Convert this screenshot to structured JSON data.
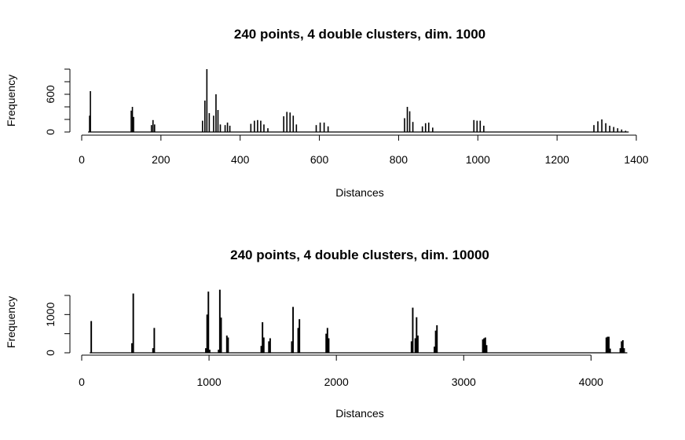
{
  "chart_data": [
    {
      "type": "bar",
      "title": "240 points, 4 double clusters, dim. 1000",
      "xlabel": "Distances",
      "ylabel": "Frequency",
      "xlim": [
        0,
        1400
      ],
      "ylim": [
        0,
        1000
      ],
      "xticks": [
        0,
        200,
        400,
        600,
        800,
        1000,
        1200,
        1400
      ],
      "yticks": [
        0,
        600
      ],
      "yticks_unlabeled": [
        200,
        400,
        800,
        1000
      ],
      "grid": false,
      "bar_color": "#000000",
      "bins": {
        "x": [
          20,
          22,
          125,
          128,
          131,
          176,
          180,
          184,
          305,
          311,
          316,
          322,
          333,
          339,
          344,
          350,
          362,
          368,
          374,
          427,
          436,
          444,
          452,
          460,
          470,
          510,
          518,
          526,
          534,
          542,
          592,
          602,
          612,
          622,
          815,
          822,
          828,
          836,
          860,
          868,
          876,
          886,
          990,
          998,
          1006,
          1015,
          1293,
          1303,
          1313,
          1323,
          1333,
          1343,
          1353,
          1363,
          1373
        ],
        "counts": [
          260,
          650,
          340,
          400,
          240,
          110,
          190,
          120,
          180,
          500,
          1000,
          300,
          260,
          600,
          350,
          120,
          110,
          150,
          100,
          130,
          180,
          190,
          180,
          120,
          60,
          250,
          320,
          310,
          260,
          120,
          110,
          150,
          150,
          90,
          220,
          400,
          330,
          160,
          90,
          140,
          150,
          70,
          190,
          180,
          180,
          100,
          110,
          170,
          200,
          140,
          100,
          80,
          60,
          40,
          20
        ],
        "bin_width": 2.5
      }
    },
    {
      "type": "bar",
      "title": "240 points, 4 double clusters, dim. 10000",
      "xlabel": "Distances",
      "ylabel": "Frequency",
      "xlim": [
        0,
        4300
      ],
      "ylim": [
        0,
        1500
      ],
      "xticks": [
        0,
        1000,
        2000,
        3000,
        4000
      ],
      "yticks": [
        0,
        1000
      ],
      "yticks_unlabeled": [
        500,
        1500
      ],
      "grid": false,
      "bar_color": "#000000",
      "bins": {
        "x": [
          75,
          395,
          405,
          560,
          570,
          975,
          985,
          995,
          1005,
          1075,
          1085,
          1095,
          1140,
          1150,
          1410,
          1420,
          1430,
          1470,
          1480,
          1650,
          1660,
          1700,
          1710,
          1920,
          1930,
          1940,
          2590,
          2600,
          2620,
          2630,
          2640,
          2770,
          2780,
          2790,
          3150,
          3160,
          3170,
          3180,
          4120,
          4130,
          4140,
          4150,
          4230,
          4240,
          4250,
          4260
        ],
        "counts": [
          830,
          250,
          1550,
          120,
          650,
          120,
          1000,
          1600,
          80,
          80,
          1650,
          920,
          450,
          400,
          180,
          800,
          400,
          300,
          380,
          300,
          1200,
          650,
          880,
          500,
          650,
          380,
          300,
          1180,
          380,
          930,
          450,
          160,
          580,
          720,
          350,
          380,
          400,
          200,
          400,
          420,
          420,
          110,
          120,
          300,
          330,
          120
        ],
        "bin_width": 10
      }
    }
  ]
}
